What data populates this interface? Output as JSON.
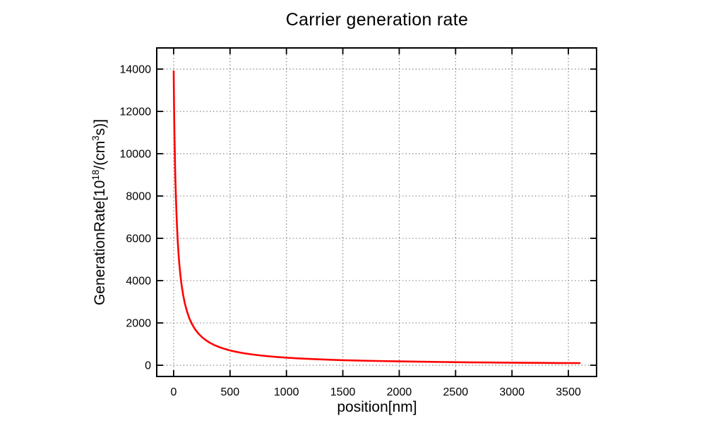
{
  "title": "Carrier generation rate",
  "colors": {
    "curve": "#ff0000",
    "grid": "#848484",
    "axis": "#000000",
    "background": "#ffffff",
    "text": "#000000"
  },
  "chart_data": {
    "type": "line",
    "title": "Carrier generation rate",
    "xlabel": "position[nm]",
    "ylabel": "GenerationRate[10^18/(cm^3 s)]",
    "ylabel_parts": {
      "pre": "GenerationRate[10",
      "sup1": "18",
      "mid": "/(cm",
      "sup2": "3",
      "post": "s)]"
    },
    "xlim": [
      -150,
      3750
    ],
    "ylim": [
      -530,
      15000
    ],
    "xticks": [
      0,
      500,
      1000,
      1500,
      2000,
      2500,
      3000,
      3500
    ],
    "yticks": [
      0,
      2000,
      4000,
      6000,
      8000,
      10000,
      12000,
      14000
    ],
    "grid": true,
    "legend": "none",
    "series": [
      {
        "name": "generation-rate",
        "color": "#ff0000",
        "x": [
          0,
          2,
          4,
          6,
          8,
          10,
          13,
          16,
          20,
          25,
          30,
          36,
          43,
          50,
          60,
          70,
          85,
          100,
          120,
          140,
          165,
          190,
          220,
          250,
          285,
          320,
          360,
          400,
          450,
          500,
          560,
          620,
          690,
          760,
          840,
          920,
          1000,
          1100,
          1200,
          1350,
          1500,
          1650,
          1800,
          2000,
          2200,
          2400,
          2600,
          2800,
          3000,
          3200,
          3400,
          3600
        ],
        "y": [
          13900,
          12930,
          12085,
          11340,
          10680,
          10100,
          9330,
          8670,
          7930,
          7160,
          6520,
          5900,
          5300,
          4820,
          4260,
          3820,
          3310,
          2910,
          2520,
          2210,
          1925,
          1700,
          1495,
          1335,
          1185,
          1065,
          955,
          865,
          775,
          700,
          630,
          570,
          515,
          470,
          425,
          390,
          360,
          327,
          300,
          268,
          241,
          220,
          202,
          182,
          166,
          152,
          140,
          130,
          122,
          114,
          108,
          102
        ]
      }
    ]
  }
}
